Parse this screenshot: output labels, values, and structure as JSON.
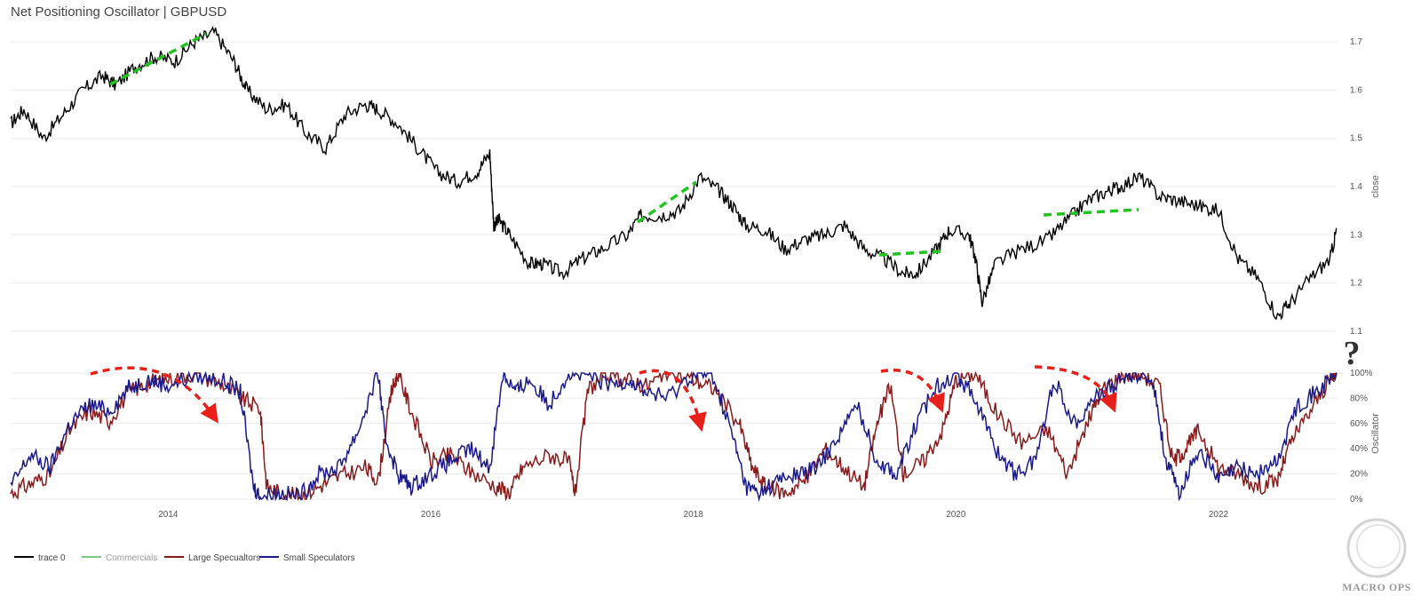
{
  "title": "Net Positioning Oscillator | GBPUSD",
  "annotations": {
    "question_mark": "?"
  },
  "watermark": {
    "text": "MACRO OPS"
  },
  "colors": {
    "price": "#000000",
    "commercials": "#7fc87f",
    "large_specs": "#8b1a1a",
    "small_specs": "#1a1a8c",
    "trend_green": "#22c41f",
    "arrow_red": "#e8201a"
  },
  "chart_data": [
    {
      "type": "line",
      "panel": "price",
      "yaxis_title": "close",
      "yticks": [
        "1.1",
        "1.2",
        "1.3",
        "1.4",
        "1.5",
        "1.6",
        "1.7"
      ],
      "ylim": [
        1.05,
        1.75
      ],
      "xlim": [
        2012.8,
        2022.9
      ],
      "series": [
        {
          "name": "trace 0",
          "x": [
            2012.8,
            2012.9,
            2013.05,
            2013.2,
            2013.35,
            2013.5,
            2013.6,
            2013.75,
            2013.9,
            2014.05,
            2014.2,
            2014.35,
            2014.5,
            2014.6,
            2014.75,
            2014.9,
            2015.05,
            2015.2,
            2015.35,
            2015.5,
            2015.6,
            2015.75,
            2015.9,
            2016.05,
            2016.2,
            2016.35,
            2016.45,
            2016.48,
            2016.52,
            2016.6,
            2016.75,
            2016.85,
            2017.0,
            2017.15,
            2017.3,
            2017.5,
            2017.6,
            2017.75,
            2017.9,
            2018.05,
            2018.2,
            2018.3,
            2018.4,
            2018.55,
            2018.7,
            2018.85,
            2019.0,
            2019.15,
            2019.3,
            2019.45,
            2019.6,
            2019.7,
            2019.85,
            2019.95,
            2020.1,
            2020.15,
            2020.2,
            2020.3,
            2020.5,
            2020.7,
            2020.85,
            2021.0,
            2021.15,
            2021.25,
            2021.4,
            2021.55,
            2021.7,
            2021.85,
            2022.0,
            2022.15,
            2022.3,
            2022.45,
            2022.55,
            2022.7,
            2022.85,
            2022.9
          ],
          "values": [
            1.53,
            1.56,
            1.5,
            1.55,
            1.6,
            1.63,
            1.61,
            1.65,
            1.67,
            1.66,
            1.7,
            1.72,
            1.66,
            1.6,
            1.56,
            1.57,
            1.51,
            1.48,
            1.55,
            1.57,
            1.56,
            1.53,
            1.48,
            1.43,
            1.41,
            1.43,
            1.47,
            1.32,
            1.33,
            1.3,
            1.24,
            1.24,
            1.22,
            1.25,
            1.27,
            1.3,
            1.34,
            1.34,
            1.35,
            1.42,
            1.39,
            1.36,
            1.32,
            1.31,
            1.27,
            1.29,
            1.3,
            1.32,
            1.27,
            1.25,
            1.22,
            1.22,
            1.27,
            1.31,
            1.3,
            1.25,
            1.16,
            1.24,
            1.27,
            1.29,
            1.33,
            1.37,
            1.39,
            1.4,
            1.42,
            1.38,
            1.37,
            1.36,
            1.35,
            1.25,
            1.21,
            1.13,
            1.16,
            1.21,
            1.25,
            1.31
          ]
        }
      ]
    },
    {
      "type": "line",
      "panel": "oscillator",
      "yaxis_title": "Oscillator",
      "yticks": [
        "0%",
        "20%",
        "40%",
        "60%",
        "80%",
        "100%"
      ],
      "ylim": [
        0,
        100
      ],
      "xlim": [
        2012.8,
        2022.9
      ],
      "xticks": [
        "2014",
        "2016",
        "2018",
        "2020",
        "2022"
      ],
      "xtick_values": [
        2014,
        2016,
        2018,
        2020,
        2022
      ],
      "legend": [
        "trace 0",
        "Commercials",
        "Large Specualtors",
        "Small Speculators"
      ],
      "series": [
        {
          "name": "Large Specualtors",
          "x": [
            2012.8,
            2012.95,
            2013.1,
            2013.25,
            2013.4,
            2013.55,
            2013.7,
            2013.85,
            2014.0,
            2014.2,
            2014.4,
            2014.55,
            2014.7,
            2014.75,
            2014.85,
            2015.0,
            2015.15,
            2015.3,
            2015.5,
            2015.6,
            2015.7,
            2015.75,
            2015.85,
            2016.0,
            2016.15,
            2016.3,
            2016.5,
            2016.6,
            2016.7,
            2016.9,
            2017.05,
            2017.1,
            2017.2,
            2017.35,
            2017.5,
            2017.65,
            2017.8,
            2018.0,
            2018.15,
            2018.35,
            2018.45,
            2018.55,
            2018.7,
            2018.85,
            2019.0,
            2019.15,
            2019.3,
            2019.4,
            2019.5,
            2019.6,
            2019.75,
            2019.9,
            2020.0,
            2020.15,
            2020.3,
            2020.5,
            2020.7,
            2020.85,
            2021.0,
            2021.1,
            2021.25,
            2021.4,
            2021.55,
            2021.65,
            2021.75,
            2021.85,
            2022.0,
            2022.15,
            2022.3,
            2022.45,
            2022.55,
            2022.7,
            2022.85,
            2022.9
          ],
          "values": [
            5,
            12,
            20,
            55,
            70,
            62,
            85,
            92,
            96,
            100,
            92,
            80,
            72,
            10,
            5,
            2,
            10,
            18,
            25,
            15,
            85,
            100,
            70,
            30,
            35,
            22,
            10,
            5,
            25,
            35,
            30,
            5,
            88,
            98,
            95,
            90,
            100,
            95,
            88,
            60,
            25,
            10,
            5,
            15,
            40,
            25,
            10,
            60,
            90,
            20,
            30,
            55,
            95,
            100,
            70,
            45,
            55,
            20,
            60,
            85,
            98,
            100,
            90,
            30,
            40,
            55,
            25,
            20,
            10,
            15,
            45,
            70,
            95,
            100
          ]
        },
        {
          "name": "Small Speculators",
          "x": [
            2012.8,
            2012.95,
            2013.1,
            2013.25,
            2013.4,
            2013.55,
            2013.7,
            2013.85,
            2014.0,
            2014.2,
            2014.4,
            2014.55,
            2014.65,
            2014.7,
            2014.85,
            2015.0,
            2015.15,
            2015.3,
            2015.45,
            2015.6,
            2015.65,
            2015.75,
            2015.85,
            2016.0,
            2016.15,
            2016.3,
            2016.45,
            2016.55,
            2016.65,
            2016.75,
            2016.9,
            2017.05,
            2017.2,
            2017.35,
            2017.5,
            2017.65,
            2017.8,
            2018.0,
            2018.15,
            2018.3,
            2018.4,
            2018.5,
            2018.65,
            2018.8,
            2018.95,
            2019.1,
            2019.25,
            2019.4,
            2019.55,
            2019.7,
            2019.85,
            2020.0,
            2020.15,
            2020.3,
            2020.45,
            2020.6,
            2020.75,
            2020.9,
            2021.05,
            2021.2,
            2021.35,
            2021.5,
            2021.6,
            2021.7,
            2021.85,
            2022.0,
            2022.15,
            2022.3,
            2022.45,
            2022.6,
            2022.75,
            2022.9
          ],
          "values": [
            10,
            35,
            25,
            60,
            75,
            70,
            88,
            95,
            90,
            98,
            95,
            85,
            10,
            2,
            5,
            2,
            20,
            25,
            55,
            100,
            50,
            20,
            10,
            20,
            30,
            40,
            25,
            100,
            85,
            95,
            75,
            100,
            98,
            90,
            95,
            85,
            80,
            100,
            98,
            50,
            10,
            5,
            15,
            20,
            25,
            50,
            75,
            30,
            20,
            60,
            90,
            100,
            80,
            40,
            20,
            30,
            95,
            60,
            80,
            90,
            100,
            95,
            30,
            5,
            40,
            15,
            25,
            20,
            30,
            75,
            85,
            100
          ]
        }
      ]
    }
  ]
}
